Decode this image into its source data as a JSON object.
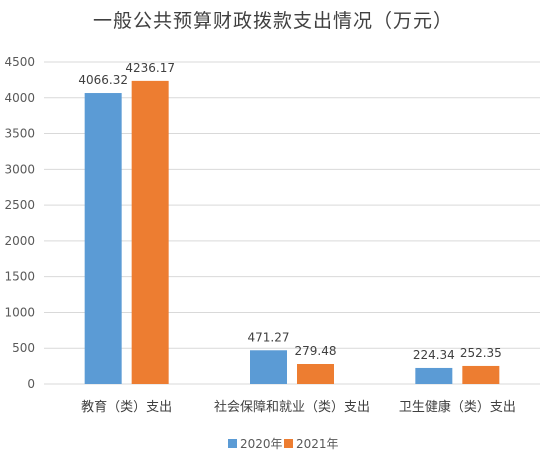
{
  "chart_data": {
    "type": "bar",
    "title": "一般公共预算财政拨款支出情况（万元）",
    "categories": [
      "教育（类）支出",
      "社会保障和就业（类）支出",
      "卫生健康（类）支出"
    ],
    "series": [
      {
        "name": "2020年",
        "color": "#5b9bd5",
        "values": [
          4066.32,
          471.27,
          224.34
        ],
        "labels": [
          "4066.32",
          "471.27",
          "224.34"
        ]
      },
      {
        "name": "2021年",
        "color": "#ed7d31",
        "values": [
          4236.17,
          279.48,
          252.35
        ],
        "labels": [
          "4236.17",
          "279.48",
          "252.35"
        ]
      }
    ],
    "ylim": [
      0,
      4500
    ],
    "yticks": [
      0,
      500,
      1000,
      1500,
      2000,
      2500,
      3000,
      3500,
      4000,
      4500
    ],
    "yticklabels": [
      "0",
      "500",
      "1000",
      "1500",
      "2000",
      "2500",
      "3000",
      "3500",
      "4000",
      "4500"
    ],
    "grid": true,
    "legend_position": "bottom"
  }
}
